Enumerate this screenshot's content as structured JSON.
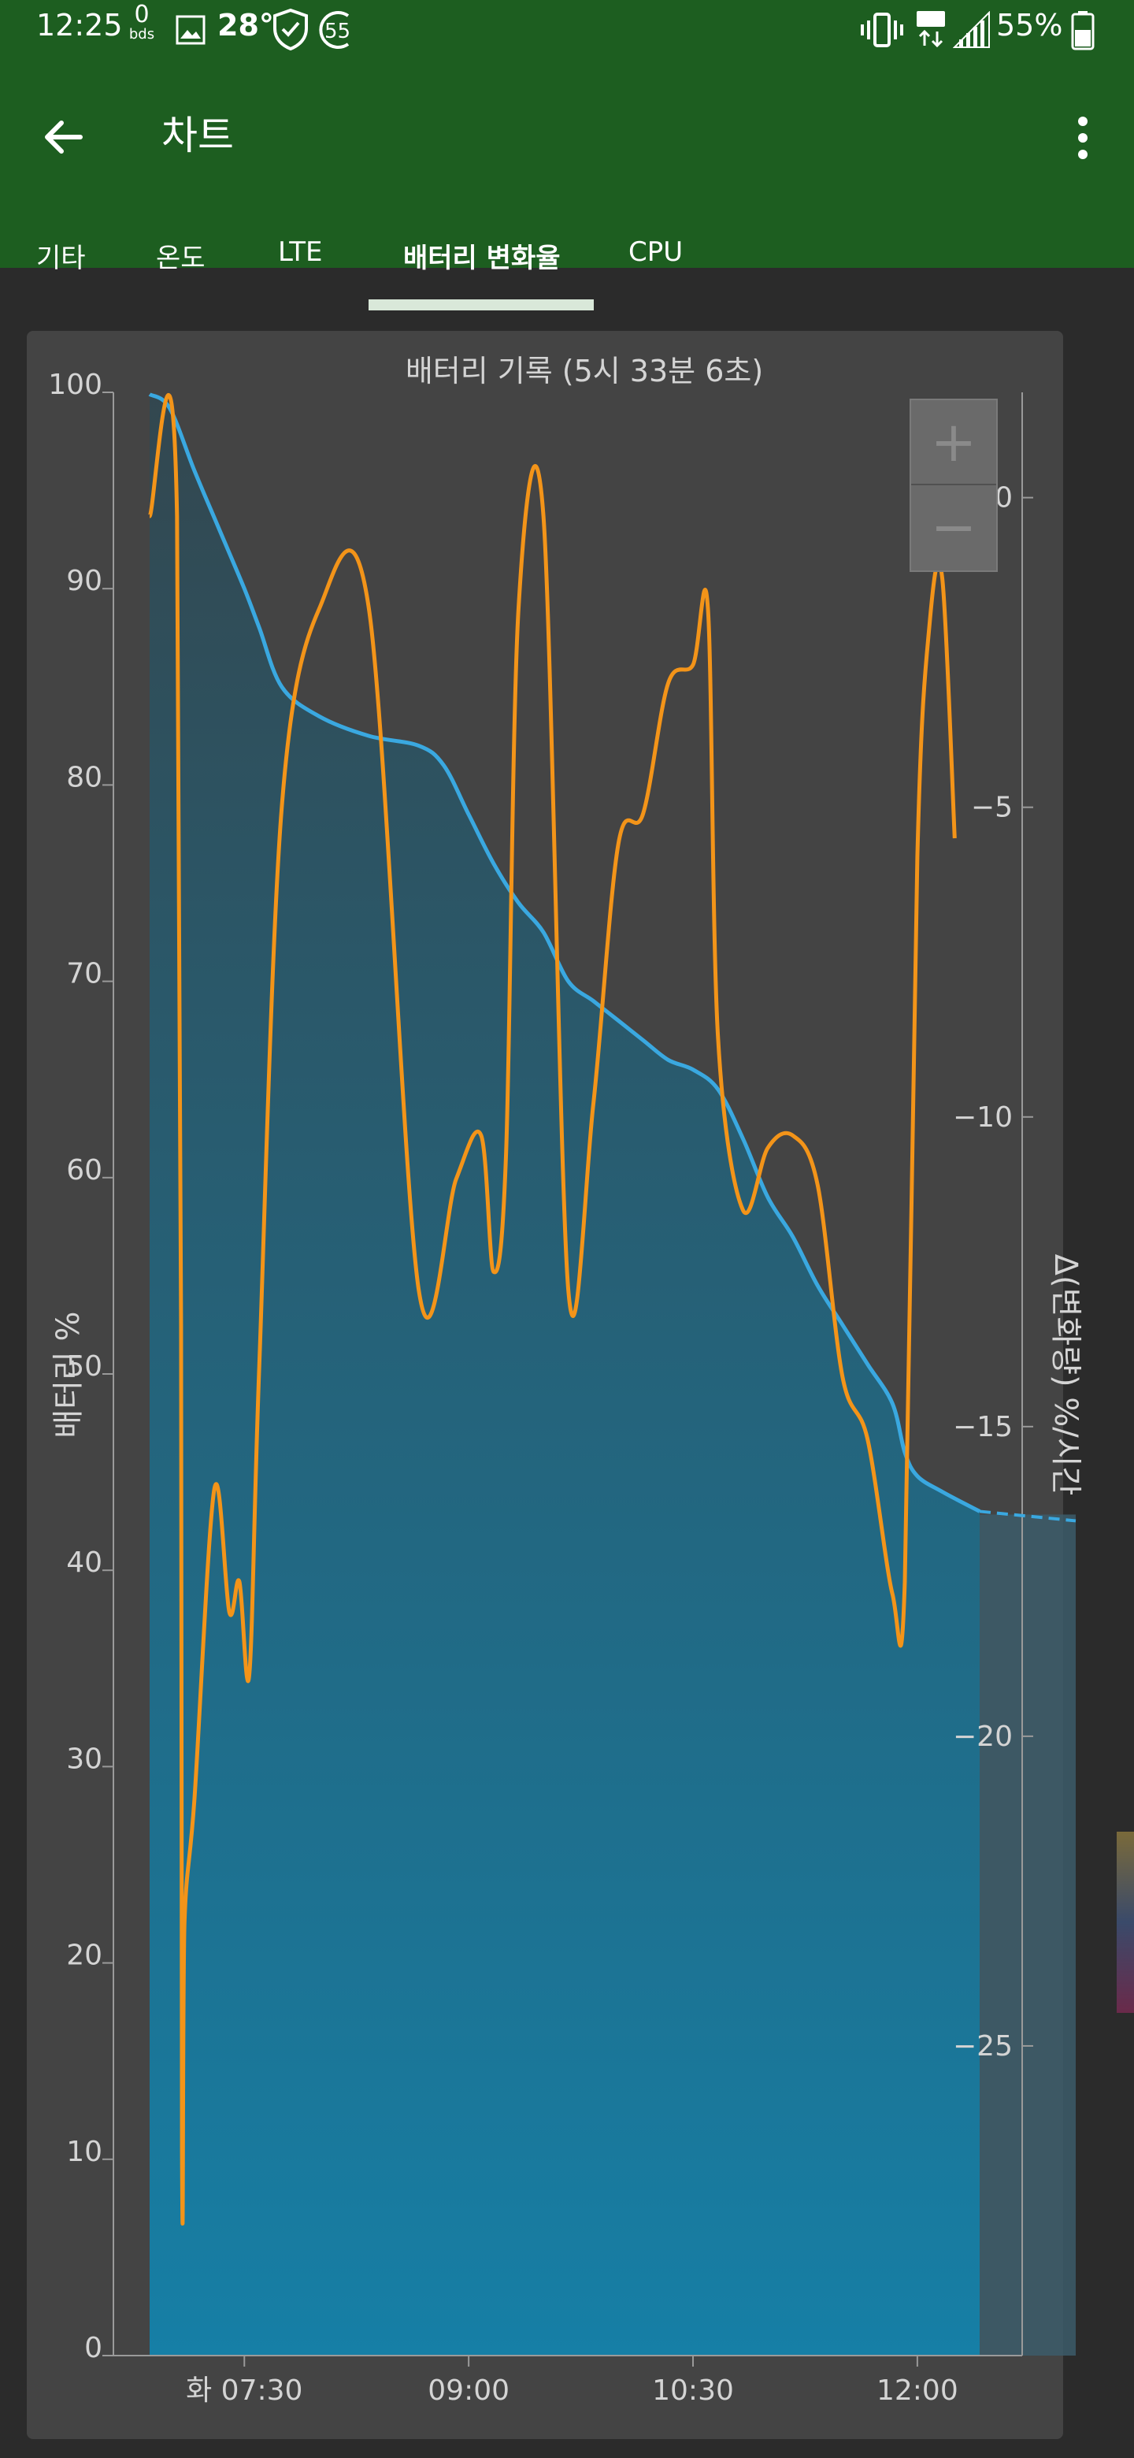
{
  "status_bar": {
    "time": "12:25",
    "bds_count": "0",
    "bds_label": "bds",
    "temperature": "28°",
    "ring_value": "55",
    "battery_pct": "55%"
  },
  "app_bar": {
    "title": "차트",
    "back_icon": "arrow-left-icon",
    "menu_icon": "more-vert-icon"
  },
  "tabs": [
    {
      "label": "기타",
      "active": false
    },
    {
      "label": "온도",
      "active": false
    },
    {
      "label": "LTE",
      "active": false
    },
    {
      "label": "배터리 변화율",
      "active": true
    },
    {
      "label": "CPU",
      "active": false
    }
  ],
  "colors": {
    "appbar": "#1d5e20",
    "battery_line": "#3aa8e0",
    "rate_line": "#f39419",
    "card": "#444444"
  },
  "zoom": {
    "plus": "+",
    "minus": "−"
  },
  "chart_data": {
    "type": "line",
    "title": "배터리 기록 (5시 33분 6초)",
    "ylabel": "배터리 %",
    "y2label": "Δ(변화량) %/시간",
    "ylim": [
      0,
      100
    ],
    "y2lim": [
      -30,
      1.7
    ],
    "yticks": [
      "0",
      "10",
      "20",
      "30",
      "40",
      "50",
      "60",
      "70",
      "80",
      "90",
      "100"
    ],
    "y2ticks": [
      "0",
      "−5",
      "−10",
      "−15",
      "−20",
      "−25"
    ],
    "xticks": [
      "화 07:30",
      "09:00",
      "10:30",
      "12:00"
    ],
    "series": [
      {
        "name": "배터리 %",
        "axis": "left",
        "color": "#3aa8e0",
        "x": [
          "06:52",
          "07:00",
          "07:10",
          "07:20",
          "07:30",
          "07:36",
          "07:45",
          "08:00",
          "08:20",
          "08:40",
          "08:50",
          "09:00",
          "09:10",
          "09:20",
          "09:30",
          "09:40",
          "09:50",
          "10:00",
          "10:10",
          "10:20",
          "10:30",
          "10:40",
          "10:50",
          "11:00",
          "11:10",
          "11:20",
          "11:30",
          "11:40",
          "11:50",
          "11:55",
          "12:00",
          "12:10",
          "12:25"
        ],
        "values": [
          99.9,
          99.2,
          96,
          93,
          90,
          88,
          85,
          83.5,
          82.5,
          82,
          81,
          78.5,
          76,
          74,
          72.5,
          70,
          69,
          68,
          67,
          66,
          65.5,
          64.5,
          62,
          59,
          57,
          54.5,
          52.5,
          50.5,
          48.5,
          46,
          44.8,
          44,
          43
        ]
      },
      {
        "name": "Δ(변화량) %/시간",
        "axis": "right",
        "color": "#f39419",
        "x": [
          "06:52",
          "07:03",
          "07:05",
          "07:06",
          "07:10",
          "07:18",
          "07:24",
          "07:28",
          "07:32",
          "07:36",
          "07:45",
          "08:00",
          "08:20",
          "08:40",
          "08:55",
          "09:05",
          "09:10",
          "09:15",
          "09:20",
          "09:30",
          "09:40",
          "09:50",
          "10:00",
          "10:10",
          "10:20",
          "10:30",
          "10:36",
          "10:40",
          "10:50",
          "11:00",
          "11:10",
          "11:20",
          "11:30",
          "11:40",
          "11:50",
          "11:55",
          "12:00",
          "12:05",
          "12:10",
          "12:15"
        ],
        "values": [
          -0.3,
          -0.3,
          -26.7,
          -23,
          -21,
          -16,
          -18,
          -17.5,
          -19,
          -14,
          -5,
          -1.8,
          -1.8,
          -12.8,
          -11,
          -10.3,
          -12.5,
          -10.6,
          -1.8,
          -0.3,
          -12.8,
          -9.8,
          -5.6,
          -5.1,
          -3,
          -2.7,
          -1.8,
          -8.7,
          -11.5,
          -10.5,
          -10.3,
          -11.1,
          -14.2,
          -15.2,
          -17.7,
          -17.5,
          -5.8,
          -2,
          -1.3,
          -5.5
        ]
      }
    ]
  }
}
